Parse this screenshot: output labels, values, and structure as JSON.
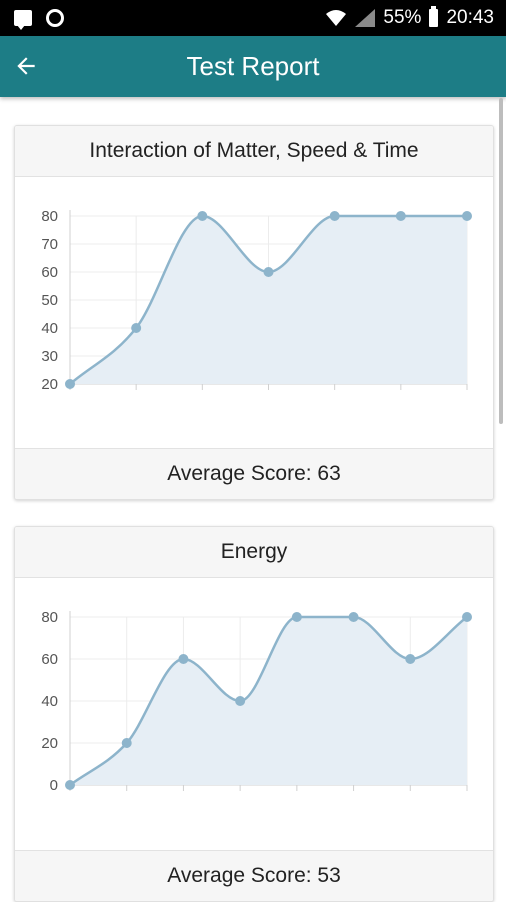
{
  "status_bar": {
    "battery": "55%",
    "time": "20:43"
  },
  "app_bar": {
    "title": "Test Report"
  },
  "colors": {
    "app_bar": "#1d7d86",
    "series_line": "#8db4cb",
    "series_fill": "#e6eef5"
  },
  "cards": [
    {
      "title": "Interaction of Matter, Speed & Time",
      "average": "Average Score: 63",
      "chart_data": {
        "type": "line",
        "x": [
          1,
          2,
          3,
          4,
          5,
          6,
          7
        ],
        "series": [
          {
            "values": [
              20,
              40,
              80,
              60,
              80,
              80,
              80
            ]
          }
        ],
        "ylim": [
          20,
          80
        ],
        "yticks": [
          20,
          30,
          40,
          50,
          60,
          70,
          80
        ],
        "grid": true,
        "area_fill": true
      }
    },
    {
      "title": "Energy",
      "average": "Average Score: 53",
      "chart_data": {
        "type": "line",
        "x": [
          1,
          2,
          3,
          4,
          5,
          6,
          7,
          8
        ],
        "series": [
          {
            "values": [
              0,
              20,
              60,
              40,
              80,
              80,
              60,
              80
            ]
          }
        ],
        "ylim": [
          0,
          80
        ],
        "yticks": [
          0,
          20,
          40,
          60,
          80
        ],
        "grid": true,
        "area_fill": true
      }
    }
  ]
}
